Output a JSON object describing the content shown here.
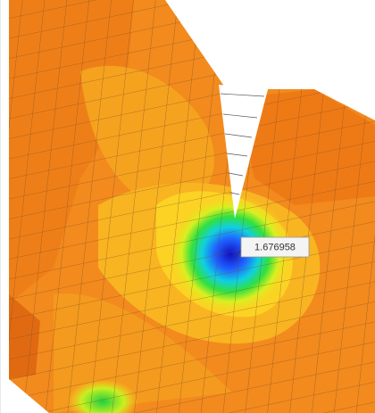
{
  "annotation": {
    "label": "1.676958"
  }
}
